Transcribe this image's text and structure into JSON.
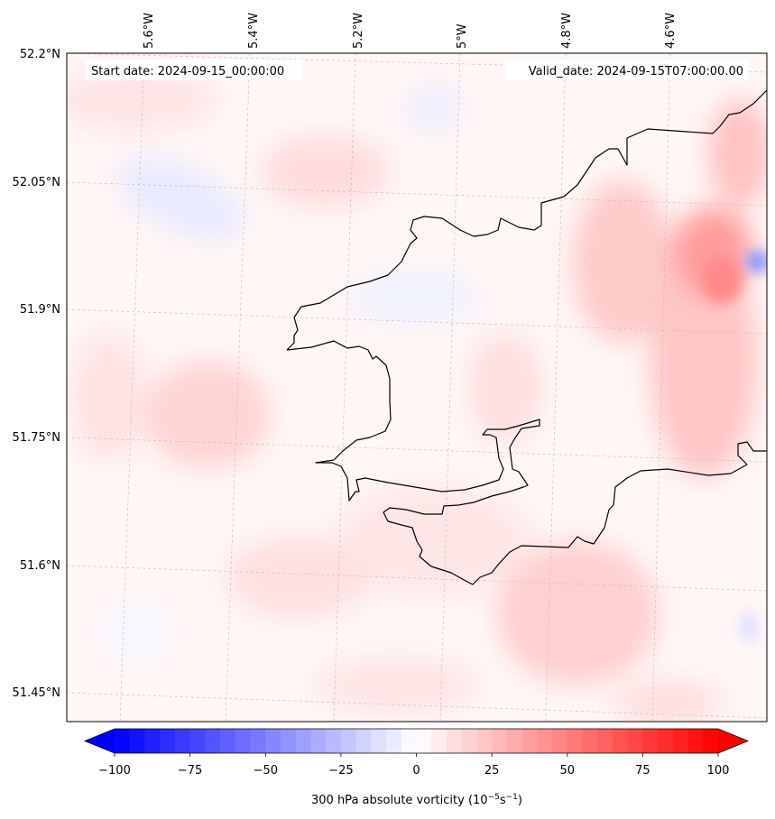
{
  "header": {
    "start_date": "Start date: 2024-09-15_00:00:00",
    "valid_date": "Valid_date: 2024-09-15T07:00:00.00"
  },
  "map": {
    "lon_labels": [
      "5.6°W",
      "5.4°W",
      "5.2°W",
      "5°W",
      "4.8°W",
      "4.6°W"
    ],
    "lat_labels": [
      "52.2°N",
      "52.05°N",
      "51.9°N",
      "51.75°N",
      "51.6°N",
      "51.45°N"
    ],
    "gridlines": true,
    "colormap": "bwr",
    "colors": {
      "negative": "#0000ff",
      "zero": "#ffffff",
      "positive": "#ff0000",
      "coastline": "#000000"
    }
  },
  "colorbar": {
    "label": "300 hPa absolute vorticity (10",
    "label_sup1": "−5",
    "label_mid": "s",
    "label_sup2": "−1",
    "label_end": ")",
    "min": -100,
    "max": 100,
    "ticks": [
      "−100",
      "−75",
      "−50",
      "−25",
      "0",
      "25",
      "50",
      "75",
      "100"
    ],
    "extend": "both"
  }
}
